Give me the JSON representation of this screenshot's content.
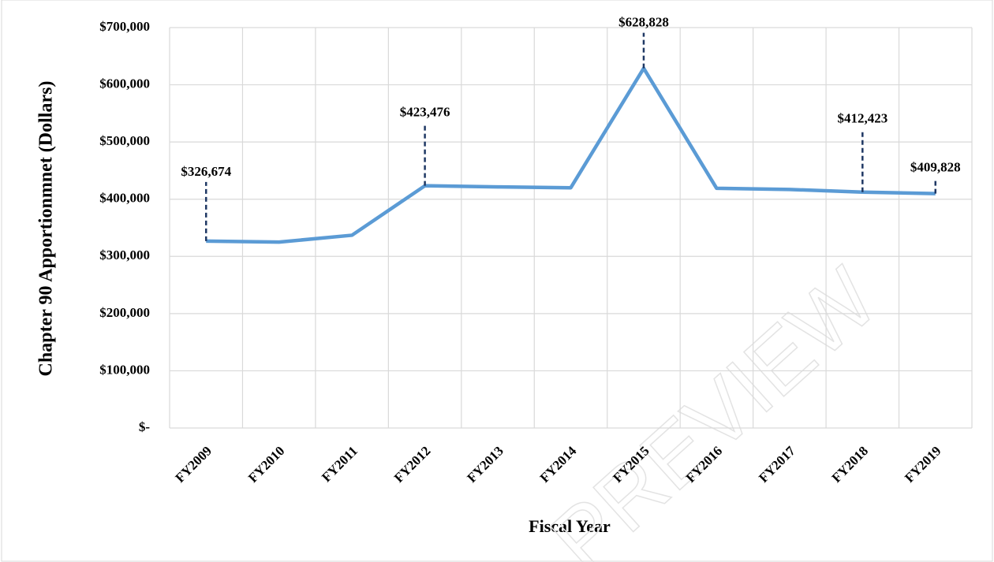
{
  "chart_data": {
    "type": "line",
    "y_axis_label": "Chapter 90 Apportionmnet (Dollars)",
    "x_axis_label": "Fiscal Year",
    "watermark": "PREVIEW",
    "categories": [
      "FY2009",
      "FY2010",
      "FY2011",
      "FY2012",
      "FY2013",
      "FY2014",
      "FY2015",
      "FY2016",
      "FY2017",
      "FY2018",
      "FY2019"
    ],
    "values": [
      326674,
      325000,
      337000,
      423476,
      421500,
      420000,
      628828,
      419000,
      417000,
      412423,
      409828
    ],
    "value_labels": [
      "$326,674",
      null,
      null,
      "$423,476",
      null,
      null,
      "$628,828",
      null,
      null,
      "$412,423",
      "$409,828"
    ],
    "color": "#5b9bd5",
    "ylim": [
      0,
      700000
    ],
    "yticks": [
      {
        "value": 0,
        "label": "$-"
      },
      {
        "value": 100000,
        "label": "$100,000"
      },
      {
        "value": 200000,
        "label": "$200,000"
      },
      {
        "value": 300000,
        "label": "$300,000"
      },
      {
        "value": 400000,
        "label": "$400,000"
      },
      {
        "value": 500000,
        "label": "$500,000"
      },
      {
        "value": 600000,
        "label": "$600,000"
      },
      {
        "value": 700000,
        "label": "$700,000"
      }
    ],
    "grid": true
  }
}
